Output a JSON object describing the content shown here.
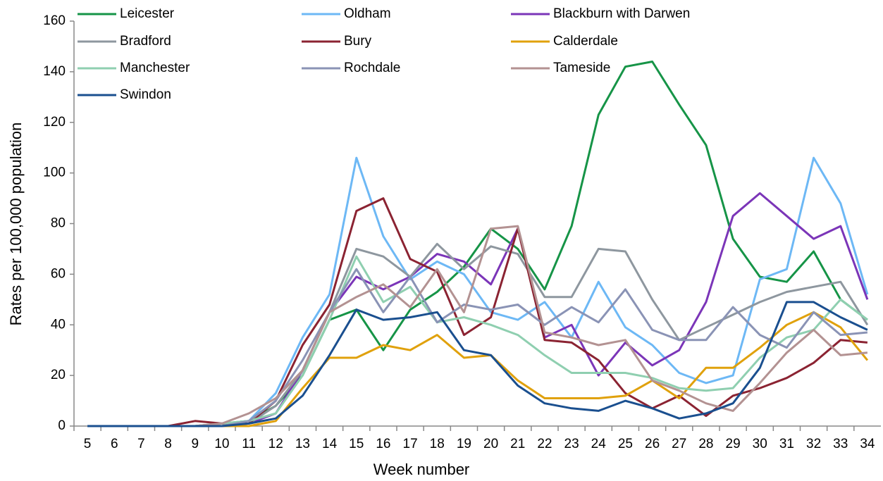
{
  "chart_data": {
    "type": "line",
    "x_label": "Week number",
    "y_label": "Rates per 100,000 population",
    "categories": [
      5,
      6,
      7,
      8,
      9,
      10,
      11,
      12,
      13,
      14,
      15,
      16,
      17,
      18,
      19,
      20,
      21,
      22,
      23,
      24,
      25,
      26,
      27,
      28,
      29,
      30,
      31,
      32,
      33,
      34
    ],
    "ylim": [
      0,
      160
    ],
    "yticks": [
      0,
      20,
      40,
      60,
      80,
      100,
      120,
      140,
      160
    ],
    "legend": "top-left",
    "series": [
      {
        "name": "Leicester",
        "color": "#169447",
        "values": [
          0,
          0,
          0,
          0,
          0,
          1,
          2,
          8,
          20,
          42,
          46,
          30,
          46,
          53,
          63,
          78,
          70,
          54,
          79,
          123,
          142,
          144,
          127,
          111,
          74,
          59,
          57,
          69,
          50,
          42
        ]
      },
      {
        "name": "Oldham",
        "color": "#6db8f5",
        "values": [
          0,
          0,
          0,
          0,
          0,
          1,
          2,
          13,
          35,
          52,
          106,
          75,
          58,
          65,
          60,
          45,
          42,
          49,
          35,
          57,
          39,
          32,
          21,
          17,
          20,
          58,
          62,
          106,
          88,
          52
        ]
      },
      {
        "name": "Blackburn with Darwen",
        "color": "#7b35b8",
        "values": [
          0,
          0,
          0,
          0,
          0,
          0,
          1,
          5,
          22,
          45,
          59,
          54,
          59,
          68,
          65,
          56,
          78,
          35,
          40,
          20,
          33,
          24,
          30,
          49,
          83,
          92,
          83,
          74,
          79,
          50
        ]
      },
      {
        "name": "Bradford",
        "color": "#8e979f",
        "values": [
          0,
          0,
          0,
          0,
          0,
          0,
          1,
          8,
          22,
          45,
          70,
          67,
          59,
          72,
          62,
          71,
          68,
          51,
          51,
          70,
          69,
          50,
          34,
          39,
          44,
          49,
          53,
          55,
          57,
          40
        ]
      },
      {
        "name": "Bury",
        "color": "#8b2332",
        "values": [
          0,
          0,
          0,
          0,
          2,
          1,
          1,
          10,
          32,
          48,
          85,
          90,
          66,
          61,
          36,
          43,
          78,
          34,
          33,
          26,
          13,
          7,
          12,
          4,
          12,
          15,
          19,
          25,
          34,
          33
        ]
      },
      {
        "name": "Calderdale",
        "color": "#e0a10c",
        "values": [
          0,
          0,
          0,
          0,
          0,
          0,
          0,
          2,
          15,
          27,
          27,
          32,
          30,
          36,
          27,
          28,
          18,
          11,
          11,
          11,
          12,
          18,
          11,
          23,
          23,
          31,
          40,
          45,
          39,
          26
        ]
      },
      {
        "name": "Manchester",
        "color": "#8fcfb0",
        "values": [
          0,
          0,
          0,
          0,
          0,
          1,
          2,
          5,
          20,
          42,
          67,
          49,
          55,
          41,
          43,
          40,
          36,
          28,
          21,
          21,
          21,
          19,
          15,
          14,
          15,
          27,
          35,
          38,
          50,
          42
        ]
      },
      {
        "name": "Rochdale",
        "color": "#8a93b5",
        "values": [
          0,
          0,
          0,
          0,
          0,
          0,
          2,
          10,
          26,
          45,
          62,
          45,
          59,
          41,
          48,
          46,
          48,
          40,
          47,
          41,
          54,
          38,
          34,
          34,
          47,
          36,
          31,
          45,
          36,
          37
        ]
      },
      {
        "name": "Tameside",
        "color": "#b39292",
        "values": [
          0,
          0,
          0,
          0,
          0,
          1,
          5,
          11,
          22,
          45,
          51,
          56,
          47,
          62,
          45,
          78,
          79,
          37,
          35,
          32,
          34,
          18,
          14,
          9,
          6,
          17,
          29,
          38,
          28,
          29
        ]
      },
      {
        "name": "Swindon",
        "color": "#1a4f8f",
        "values": [
          0,
          0,
          0,
          0,
          0,
          0,
          1,
          3,
          12,
          28,
          46,
          42,
          43,
          45,
          30,
          28,
          16,
          9,
          7,
          6,
          10,
          7,
          3,
          5,
          9,
          23,
          49,
          49,
          43,
          38
        ]
      }
    ]
  }
}
